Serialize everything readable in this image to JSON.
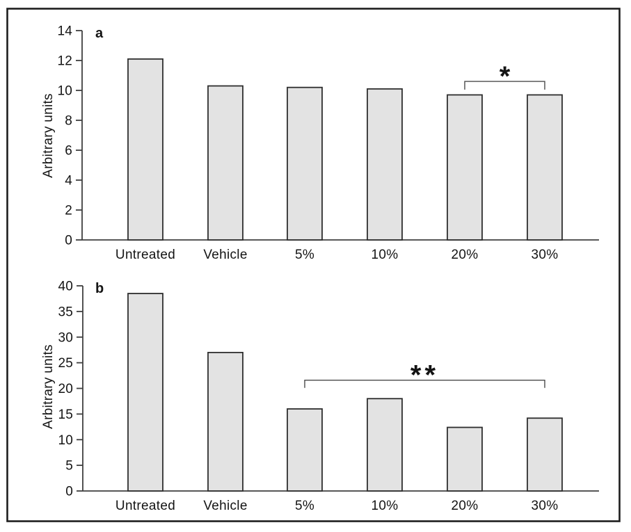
{
  "figure": {
    "description": "Two stacked bar-chart panels (a and b) in a black frame, each showing arbitrary units for six treatment groups",
    "panel_labels": [
      "a",
      "b"
    ]
  },
  "colors": {
    "background": "#ffffff",
    "frame": "#1d1d1d",
    "bar_fill": "#e3e3e3",
    "bar_stroke": "#2d2d2d",
    "axis": "#3f3f3f",
    "bracket": "#4a4a4a",
    "text": "#141414"
  },
  "chart_data": [
    {
      "type": "bar",
      "panel_label": "a",
      "title": "",
      "xlabel": "",
      "ylabel": "Arbitrary units",
      "categories": [
        "Untreated",
        "Vehicle",
        "5%",
        "10%",
        "20%",
        "30%"
      ],
      "values": [
        12.1,
        10.3,
        10.2,
        10.1,
        9.7,
        9.7
      ],
      "ylim": [
        0,
        14
      ],
      "yticks": [
        0,
        2,
        4,
        6,
        8,
        10,
        12,
        14
      ],
      "grid": false,
      "legend": null,
      "annotations": [
        {
          "type": "bracket",
          "from": "20%",
          "to": "30%",
          "label": "*",
          "y": 10.6,
          "tick_drop": 0.55
        }
      ]
    },
    {
      "type": "bar",
      "panel_label": "b",
      "title": "",
      "xlabel": "",
      "ylabel": "Arbitrary units",
      "categories": [
        "Untreated",
        "Vehicle",
        "5%",
        "10%",
        "20%",
        "30%"
      ],
      "values": [
        38.5,
        27,
        16,
        18,
        12.4,
        14.2
      ],
      "ylim": [
        0,
        40
      ],
      "yticks": [
        0,
        5,
        10,
        15,
        20,
        25,
        30,
        35,
        40
      ],
      "grid": false,
      "legend": null,
      "annotations": [
        {
          "type": "bracket",
          "from": "5%",
          "to": "30%",
          "label": "**",
          "y": 21.6,
          "tick_drop": 1.5
        }
      ]
    }
  ]
}
